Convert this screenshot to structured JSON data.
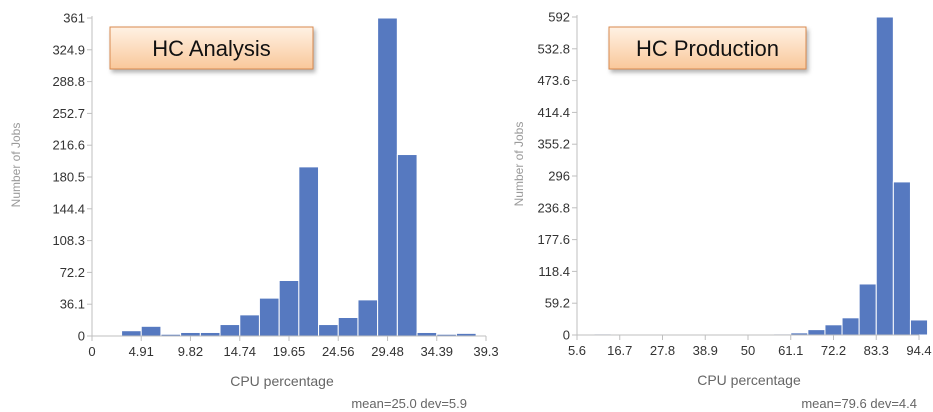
{
  "chart_data": [
    {
      "type": "bar",
      "title": "HC Analysis",
      "xlabel": "CPU percentage",
      "ylabel": "Number of Jobs",
      "footer": "mean=25.0 dev=5.9",
      "ylim": [
        0,
        361
      ],
      "xlim": [
        0,
        39.3
      ],
      "yticks": [
        "0",
        "36.1",
        "72.2",
        "108.3",
        "144.4",
        "180.5",
        "216.6",
        "252.7",
        "288.8",
        "324.9",
        "361"
      ],
      "xticks": [
        {
          "v": 0,
          "label": "0"
        },
        {
          "v": 4.91,
          "label": "4.91"
        },
        {
          "v": 9.82,
          "label": "9.82"
        },
        {
          "v": 14.74,
          "label": "14.74"
        },
        {
          "v": 19.65,
          "label": "19.65"
        },
        {
          "v": 24.56,
          "label": "24.56"
        },
        {
          "v": 29.48,
          "label": "29.48"
        },
        {
          "v": 34.39,
          "label": "34.39"
        },
        {
          "v": 39.3,
          "label": "39.3"
        }
      ],
      "bin_width": 1.965,
      "bins": [
        {
          "x": 2.95,
          "value": 6
        },
        {
          "x": 4.91,
          "value": 11
        },
        {
          "x": 6.88,
          "value": 2
        },
        {
          "x": 8.84,
          "value": 4
        },
        {
          "x": 10.81,
          "value": 4
        },
        {
          "x": 12.77,
          "value": 13
        },
        {
          "x": 14.74,
          "value": 24
        },
        {
          "x": 16.7,
          "value": 43
        },
        {
          "x": 18.67,
          "value": 63
        },
        {
          "x": 20.63,
          "value": 192
        },
        {
          "x": 22.6,
          "value": 13
        },
        {
          "x": 24.56,
          "value": 21
        },
        {
          "x": 26.53,
          "value": 41
        },
        {
          "x": 28.49,
          "value": 361
        },
        {
          "x": 30.46,
          "value": 206
        },
        {
          "x": 32.42,
          "value": 4
        },
        {
          "x": 34.39,
          "value": 2
        },
        {
          "x": 36.35,
          "value": 3
        }
      ]
    },
    {
      "type": "bar",
      "title": "HC Production",
      "xlabel": "CPU percentage",
      "ylabel": "Number of Jobs",
      "footer": "mean=79.6 dev=4.4",
      "ylim": [
        0,
        592
      ],
      "xlim": [
        5.6,
        94.4
      ],
      "yticks": [
        "0",
        "59.2",
        "118.4",
        "177.6",
        "236.8",
        "296",
        "355.2",
        "414.4",
        "473.6",
        "532.8",
        "592"
      ],
      "xticks": [
        {
          "v": 5.6,
          "label": "5.6"
        },
        {
          "v": 16.7,
          "label": "16.7"
        },
        {
          "v": 27.8,
          "label": "27.8"
        },
        {
          "v": 38.9,
          "label": "38.9"
        },
        {
          "v": 50,
          "label": "50"
        },
        {
          "v": 61.1,
          "label": "61.1"
        },
        {
          "v": 72.2,
          "label": "72.2"
        },
        {
          "v": 83.3,
          "label": "83.3"
        },
        {
          "v": 94.4,
          "label": "94.4"
        }
      ],
      "bin_width": 4.44,
      "bins": [
        {
          "x": 10.04,
          "value": 2
        },
        {
          "x": 56.66,
          "value": 2
        },
        {
          "x": 61.1,
          "value": 4
        },
        {
          "x": 65.54,
          "value": 10
        },
        {
          "x": 69.98,
          "value": 19
        },
        {
          "x": 74.42,
          "value": 32
        },
        {
          "x": 78.86,
          "value": 95
        },
        {
          "x": 83.3,
          "value": 592
        },
        {
          "x": 87.74,
          "value": 285
        },
        {
          "x": 92.18,
          "value": 28
        }
      ]
    }
  ],
  "colors": {
    "bar": "#5679c0",
    "bar_stroke": "#ffffff",
    "axis": "#bfbfbf",
    "tick_text": "#333333",
    "axis_label": "#666666",
    "ylabel_text": "#9a9a9a",
    "title_box_top": "#fff1e4",
    "title_box_bottom": "#f9c79a",
    "title_box_border": "#d98a50"
  }
}
